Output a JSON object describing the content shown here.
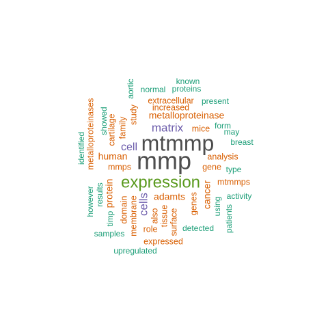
{
  "palette": {
    "dark_gray": "#4d4d4d",
    "green": "#5a9a1e",
    "purple": "#6a5aaa",
    "orange": "#d95f02",
    "teal": "#1b9e77"
  },
  "words": [
    {
      "text": "mmp",
      "color": "#4d4d4d",
      "weight": 10
    },
    {
      "text": "mtmmp",
      "color": "#4d4d4d",
      "weight": 9
    },
    {
      "text": "expression",
      "color": "#5a9a1e",
      "weight": 7
    },
    {
      "text": "matrix",
      "color": "#6a5aaa",
      "weight": 5
    },
    {
      "text": "cell",
      "color": "#6a5aaa",
      "weight": 5
    },
    {
      "text": "cells",
      "color": "#6a5aaa",
      "weight": 5
    },
    {
      "text": "metalloproteinase",
      "color": "#d95f02",
      "weight": 4
    },
    {
      "text": "human",
      "color": "#d95f02",
      "weight": 4
    },
    {
      "text": "adamts",
      "color": "#d95f02",
      "weight": 4
    },
    {
      "text": "protein",
      "color": "#d95f02",
      "weight": 4
    },
    {
      "text": "cancer",
      "color": "#d95f02",
      "weight": 4
    },
    {
      "text": "extracellular",
      "color": "#d95f02",
      "weight": 3
    },
    {
      "text": "increased",
      "color": "#d95f02",
      "weight": 3
    },
    {
      "text": "mice",
      "color": "#d95f02",
      "weight": 3
    },
    {
      "text": "study",
      "color": "#d95f02",
      "weight": 3
    },
    {
      "text": "family",
      "color": "#d95f02",
      "weight": 3
    },
    {
      "text": "cartilage",
      "color": "#d95f02",
      "weight": 3
    },
    {
      "text": "metalloproteinases",
      "color": "#d95f02",
      "weight": 3
    },
    {
      "text": "mmps",
      "color": "#d95f02",
      "weight": 3
    },
    {
      "text": "analysis",
      "color": "#d95f02",
      "weight": 3
    },
    {
      "text": "gene",
      "color": "#d95f02",
      "weight": 3
    },
    {
      "text": "mtmmps",
      "color": "#d95f02",
      "weight": 3
    },
    {
      "text": "domain",
      "color": "#d95f02",
      "weight": 3
    },
    {
      "text": "membrane",
      "color": "#d95f02",
      "weight": 3
    },
    {
      "text": "also",
      "color": "#d95f02",
      "weight": 3
    },
    {
      "text": "tissue",
      "color": "#d95f02",
      "weight": 3
    },
    {
      "text": "surface",
      "color": "#d95f02",
      "weight": 3
    },
    {
      "text": "genes",
      "color": "#d95f02",
      "weight": 3
    },
    {
      "text": "role",
      "color": "#d95f02",
      "weight": 3
    },
    {
      "text": "expressed",
      "color": "#d95f02",
      "weight": 3
    },
    {
      "text": "known",
      "color": "#1b9e77",
      "weight": 2
    },
    {
      "text": "normal",
      "color": "#1b9e77",
      "weight": 2
    },
    {
      "text": "proteins",
      "color": "#1b9e77",
      "weight": 2
    },
    {
      "text": "aortic",
      "color": "#1b9e77",
      "weight": 2
    },
    {
      "text": "present",
      "color": "#1b9e77",
      "weight": 2
    },
    {
      "text": "showed",
      "color": "#1b9e77",
      "weight": 2
    },
    {
      "text": "form",
      "color": "#1b9e77",
      "weight": 2
    },
    {
      "text": "may",
      "color": "#1b9e77",
      "weight": 2
    },
    {
      "text": "breast",
      "color": "#1b9e77",
      "weight": 2
    },
    {
      "text": "identified",
      "color": "#1b9e77",
      "weight": 2
    },
    {
      "text": "type",
      "color": "#1b9e77",
      "weight": 2
    },
    {
      "text": "however",
      "color": "#1b9e77",
      "weight": 2
    },
    {
      "text": "results",
      "color": "#1b9e77",
      "weight": 2
    },
    {
      "text": "timp",
      "color": "#1b9e77",
      "weight": 2
    },
    {
      "text": "activity",
      "color": "#1b9e77",
      "weight": 2
    },
    {
      "text": "using",
      "color": "#1b9e77",
      "weight": 2
    },
    {
      "text": "patients",
      "color": "#1b9e77",
      "weight": 2
    },
    {
      "text": "detected",
      "color": "#1b9e77",
      "weight": 2
    },
    {
      "text": "samples",
      "color": "#1b9e77",
      "weight": 2
    },
    {
      "text": "upregulated",
      "color": "#1b9e77",
      "weight": 2
    }
  ]
}
